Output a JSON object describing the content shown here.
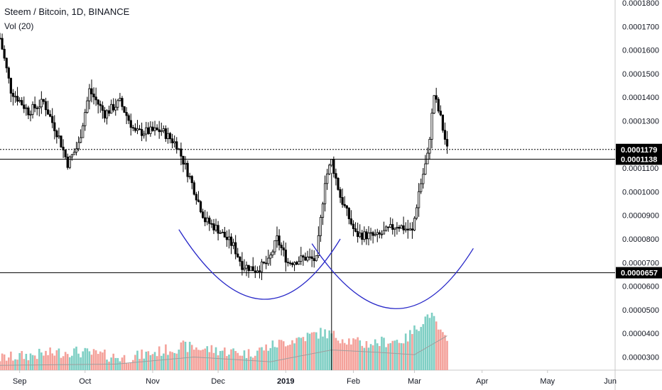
{
  "header": {
    "title": "Steem / Bitcoin, 1D, BINANCE",
    "volume_label": "Vol (20)"
  },
  "colors": {
    "up_volume": "#7fcfc4",
    "down_volume": "#f4a19a",
    "candle": "#000000",
    "curve": "#2727c8",
    "volume_ma": "#9e9e9e",
    "price_tag_bg": "#000000",
    "grid_axis": "#c8c8c8"
  },
  "chart_data": {
    "type": "candlestick",
    "title": "Steem / Bitcoin, 1D, BINANCE",
    "x_axis": {
      "labels": [
        "Sep",
        "Oct",
        "Nov",
        "Dec",
        "2019",
        "Feb",
        "Mar",
        "Apr",
        "May",
        "Jun"
      ],
      "bold_labels": [
        "2019"
      ],
      "range": [
        "2018-08-23",
        "2019-06-01"
      ]
    },
    "y_axis": {
      "position": "right",
      "ticks": [
        "0.0001800",
        "0.0001700",
        "0.0001600",
        "0.0001500",
        "0.0001400",
        "0.0001300",
        "0.0001100",
        "0.0001000",
        "0.0000900",
        "0.0000800",
        "0.0000700",
        "0.0000600",
        "0.0000500",
        "0.0000400",
        "0.0000300"
      ],
      "range": [
        2.4e-05,
        0.000181
      ]
    },
    "price_tags": [
      {
        "label": "0.0001179",
        "value": 0.0001179,
        "line": "dotted"
      },
      {
        "label": "0.0001138",
        "value": 0.0001138,
        "line": "solid"
      },
      {
        "label": "0.0000657",
        "value": 6.57e-05,
        "line": "solid"
      }
    ],
    "vertical_marker": "2019-01-22",
    "annotations": [
      {
        "type": "arc",
        "from": {
          "date": "2018-11-13",
          "price": 8.4e-05
        },
        "bottom": {
          "date": "2018-12-21",
          "price": 5.45e-05
        },
        "to": {
          "date": "2019-01-26",
          "price": 8e-05
        }
      },
      {
        "type": "arc",
        "from": {
          "date": "2019-01-13",
          "price": 7.8e-05
        },
        "bottom": {
          "date": "2019-02-20",
          "price": 5.05e-05
        },
        "to": {
          "date": "2019-03-28",
          "price": 7.6e-05
        }
      }
    ],
    "keypoints": [
      {
        "date": "2018-08-23",
        "price": 0.000165
      },
      {
        "date": "2018-08-28",
        "price": 0.000143
      },
      {
        "date": "2018-09-05",
        "price": 0.000134
      },
      {
        "date": "2018-09-12",
        "price": 0.000138
      },
      {
        "date": "2018-09-19",
        "price": 0.000123
      },
      {
        "date": "2018-09-23",
        "price": 0.000112
      },
      {
        "date": "2018-09-28",
        "price": 0.00012
      },
      {
        "date": "2018-10-03",
        "price": 0.000143
      },
      {
        "date": "2018-10-10",
        "price": 0.000133
      },
      {
        "date": "2018-10-17",
        "price": 0.000138
      },
      {
        "date": "2018-10-24",
        "price": 0.000125
      },
      {
        "date": "2018-11-05",
        "price": 0.000126
      },
      {
        "date": "2018-11-12",
        "price": 0.00012
      },
      {
        "date": "2018-11-18",
        "price": 0.000106
      },
      {
        "date": "2018-11-25",
        "price": 8.8e-05
      },
      {
        "date": "2018-12-01",
        "price": 8.4e-05
      },
      {
        "date": "2018-12-08",
        "price": 7.7e-05
      },
      {
        "date": "2018-12-12",
        "price": 6.9e-05
      },
      {
        "date": "2018-12-18",
        "price": 6.7e-05
      },
      {
        "date": "2018-12-24",
        "price": 7e-05
      },
      {
        "date": "2018-12-28",
        "price": 8e-05
      },
      {
        "date": "2019-01-02",
        "price": 7e-05
      },
      {
        "date": "2019-01-10",
        "price": 7.2e-05
      },
      {
        "date": "2019-01-15",
        "price": 7.1e-05
      },
      {
        "date": "2019-01-19",
        "price": 0.000105
      },
      {
        "date": "2019-01-22",
        "price": 0.000113
      },
      {
        "date": "2019-01-26",
        "price": 9.8e-05
      },
      {
        "date": "2019-02-02",
        "price": 8.2e-05
      },
      {
        "date": "2019-02-12",
        "price": 8.1e-05
      },
      {
        "date": "2019-02-21",
        "price": 8.6e-05
      },
      {
        "date": "2019-02-28",
        "price": 8.3e-05
      },
      {
        "date": "2019-03-03",
        "price": 0.0001
      },
      {
        "date": "2019-03-07",
        "price": 0.000115
      },
      {
        "date": "2019-03-10",
        "price": 0.000141
      },
      {
        "date": "2019-03-13",
        "price": 0.000131
      },
      {
        "date": "2019-03-16",
        "price": 0.0001179
      }
    ],
    "volume_keypoints": [
      {
        "date": "2018-08-23",
        "value": 2.7e-05
      },
      {
        "date": "2018-09-25",
        "value": 3e-05
      },
      {
        "date": "2018-10-20",
        "value": 2.7e-05
      },
      {
        "date": "2018-11-15",
        "value": 3.2e-05
      },
      {
        "date": "2018-12-15",
        "value": 2.9e-05
      },
      {
        "date": "2018-12-28",
        "value": 3.3e-05
      },
      {
        "date": "2019-01-18",
        "value": 3.8e-05
      },
      {
        "date": "2019-02-05",
        "value": 3.3e-05
      },
      {
        "date": "2019-02-25",
        "value": 3.5e-05
      },
      {
        "date": "2019-03-08",
        "value": 4.6e-05
      },
      {
        "date": "2019-03-16",
        "value": 3.3e-05
      }
    ],
    "volume_ma_keypoints": [
      {
        "date": "2018-08-23",
        "value": 2.65e-05
      },
      {
        "date": "2018-10-15",
        "value": 2.7e-05
      },
      {
        "date": "2018-11-20",
        "value": 3e-05
      },
      {
        "date": "2018-12-25",
        "value": 2.8e-05
      },
      {
        "date": "2019-01-22",
        "value": 3.3e-05
      },
      {
        "date": "2019-02-12",
        "value": 3.2e-05
      },
      {
        "date": "2019-03-01",
        "value": 3.1e-05
      },
      {
        "date": "2019-03-16",
        "value": 3.9e-05
      }
    ]
  }
}
